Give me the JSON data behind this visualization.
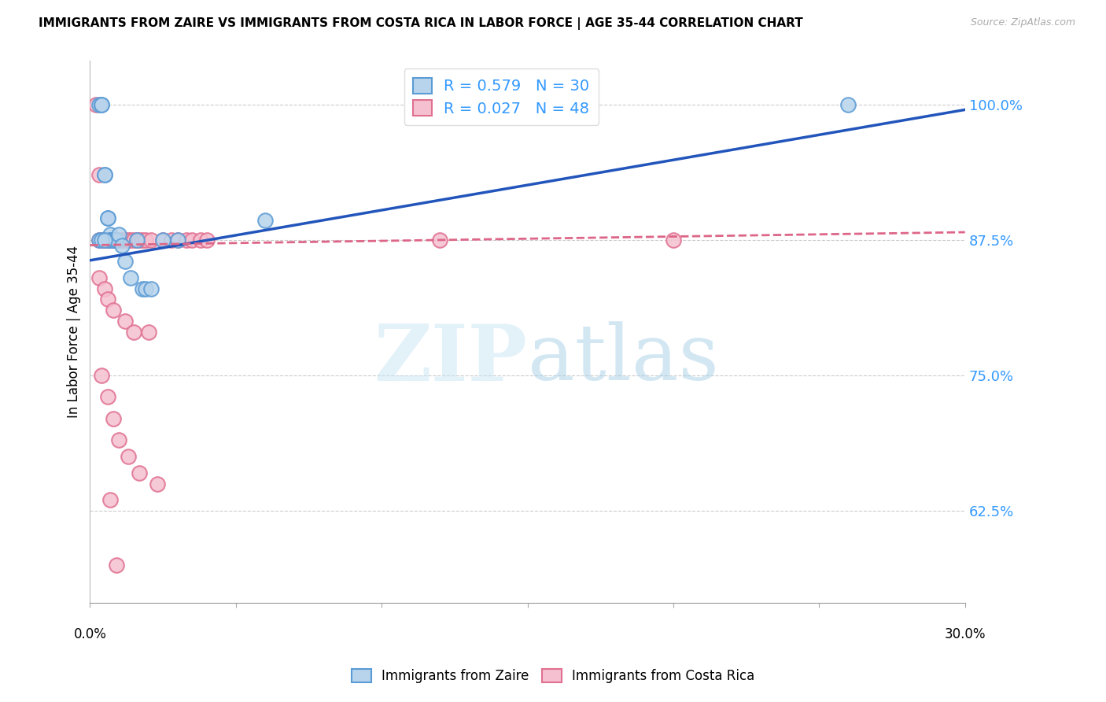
{
  "title": "IMMIGRANTS FROM ZAIRE VS IMMIGRANTS FROM COSTA RICA IN LABOR FORCE | AGE 35-44 CORRELATION CHART",
  "source": "Source: ZipAtlas.com",
  "ylabel": "In Labor Force | Age 35-44",
  "xlim": [
    0.0,
    0.3
  ],
  "ylim": [
    0.54,
    1.04
  ],
  "zaire_color": "#b8d4ec",
  "zaire_edge_color": "#5b9bd5",
  "costa_rica_color": "#f5c0d0",
  "costa_rica_edge_color": "#e07090",
  "zaire_R": 0.579,
  "zaire_N": 30,
  "costa_rica_R": 0.027,
  "costa_rica_N": 48,
  "trend_blue_color": "#2255bb",
  "trend_pink_color": "#dd6688",
  "watermark_zip": "ZIP",
  "watermark_atlas": "atlas",
  "legend_label_zaire": "Immigrants from Zaire",
  "legend_label_costa_rica": "Immigrants from Costa Rica",
  "ytick_vals": [
    0.625,
    0.75,
    0.875,
    1.0
  ],
  "ytick_labels": [
    "62.5%",
    "75.0%",
    "87.5%",
    "100.0%"
  ],
  "zaire_x": [
    0.003,
    0.004,
    0.004,
    0.005,
    0.005,
    0.006,
    0.006,
    0.006,
    0.007,
    0.007,
    0.007,
    0.008,
    0.008,
    0.009,
    0.009,
    0.01,
    0.011,
    0.012,
    0.014,
    0.016,
    0.018,
    0.019,
    0.021,
    0.025,
    0.03,
    0.06,
    0.26,
    0.003,
    0.004,
    0.005
  ],
  "zaire_y": [
    1.0,
    1.0,
    1.0,
    0.935,
    0.935,
    0.895,
    0.895,
    0.875,
    0.88,
    0.875,
    0.875,
    0.875,
    0.875,
    0.875,
    0.875,
    0.88,
    0.87,
    0.855,
    0.84,
    0.875,
    0.83,
    0.83,
    0.83,
    0.875,
    0.875,
    0.893,
    1.0,
    0.875,
    0.875,
    0.875
  ],
  "costa_x": [
    0.002,
    0.003,
    0.003,
    0.004,
    0.005,
    0.005,
    0.006,
    0.006,
    0.007,
    0.007,
    0.008,
    0.009,
    0.01,
    0.011,
    0.012,
    0.013,
    0.014,
    0.015,
    0.016,
    0.017,
    0.018,
    0.019,
    0.021,
    0.025,
    0.028,
    0.03,
    0.033,
    0.035,
    0.038,
    0.04,
    0.003,
    0.005,
    0.006,
    0.008,
    0.012,
    0.015,
    0.02,
    0.12,
    0.004,
    0.006,
    0.008,
    0.01,
    0.013,
    0.017,
    0.023,
    0.2,
    0.007,
    0.009
  ],
  "costa_y": [
    1.0,
    0.935,
    0.875,
    0.875,
    0.875,
    0.875,
    0.875,
    0.875,
    0.875,
    0.875,
    0.875,
    0.875,
    0.875,
    0.875,
    0.875,
    0.875,
    0.875,
    0.875,
    0.875,
    0.875,
    0.875,
    0.875,
    0.875,
    0.875,
    0.875,
    0.875,
    0.875,
    0.875,
    0.875,
    0.875,
    0.84,
    0.83,
    0.82,
    0.81,
    0.8,
    0.79,
    0.79,
    0.875,
    0.75,
    0.73,
    0.71,
    0.69,
    0.675,
    0.66,
    0.65,
    0.875,
    0.635,
    0.575
  ],
  "zaire_trend_x": [
    0.0,
    0.3
  ],
  "zaire_trend_y": [
    0.856,
    0.995
  ],
  "costa_trend_x": [
    0.0,
    0.3
  ],
  "costa_trend_y": [
    0.87,
    0.882
  ]
}
